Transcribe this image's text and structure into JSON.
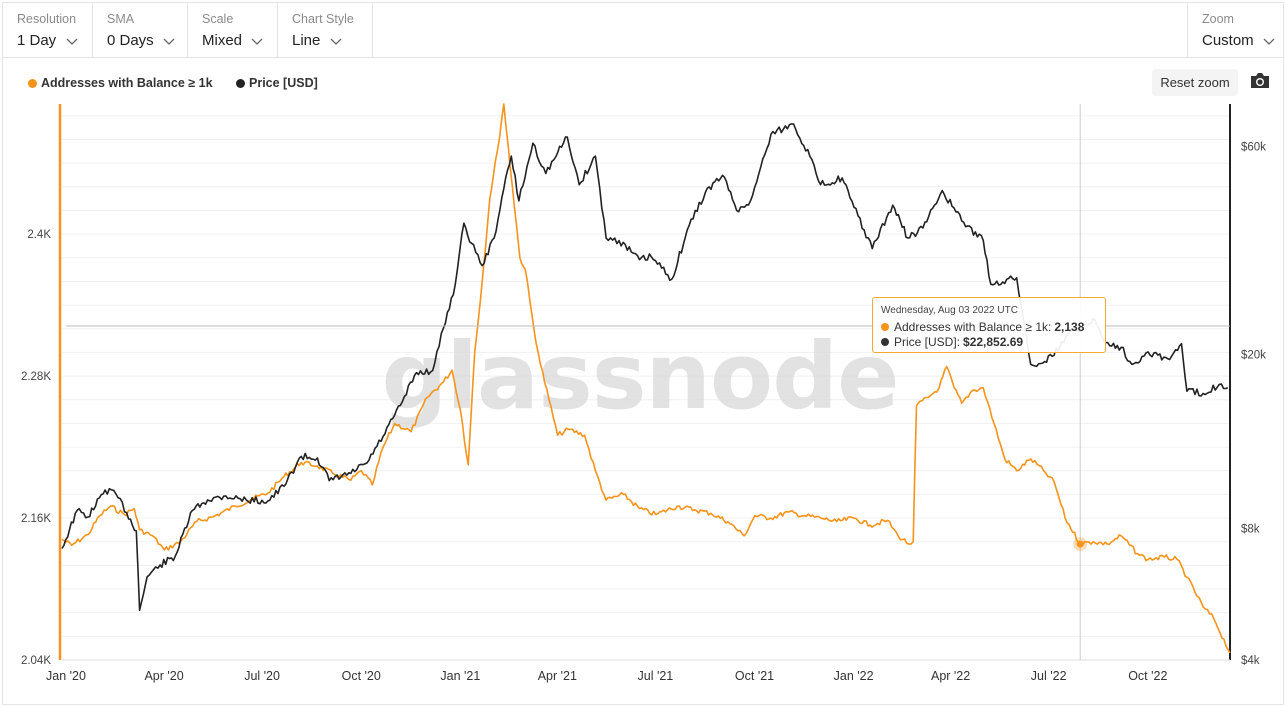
{
  "toolbar": {
    "resolution": {
      "label": "Resolution",
      "value": "1 Day"
    },
    "sma": {
      "label": "SMA",
      "value": "0 Days"
    },
    "scale": {
      "label": "Scale",
      "value": "Mixed"
    },
    "chart_style": {
      "label": "Chart Style",
      "value": "Line"
    },
    "zoom": {
      "label": "Zoom",
      "value": "Custom"
    }
  },
  "reset_zoom_label": "Reset zoom",
  "icons": {
    "camera": "camera-icon",
    "chevron": "chevron-down-icon"
  },
  "watermark": "glassnode",
  "colors": {
    "addresses": "#f7931a",
    "price": "#222222",
    "tooltip_border": "#f5a833"
  },
  "tooltip": {
    "date": "Wednesday, Aug 03 2022 UTC",
    "addresses_label": "Addresses with Balance ≥ 1k:",
    "addresses_value": "2,138",
    "price_label": "Price [USD]:",
    "price_value": "$22,852.69"
  },
  "chart_data": {
    "type": "line",
    "x_axis": {
      "type": "date",
      "range": [
        "2020-01-01",
        "2022-12-20"
      ],
      "ticks": [
        {
          "date": "2020-01-01",
          "label": "Jan '20"
        },
        {
          "date": "2020-04-01",
          "label": "Apr '20"
        },
        {
          "date": "2020-07-01",
          "label": "Jul '20"
        },
        {
          "date": "2020-10-01",
          "label": "Oct '20"
        },
        {
          "date": "2021-01-01",
          "label": "Jan '21"
        },
        {
          "date": "2021-04-01",
          "label": "Apr '21"
        },
        {
          "date": "2021-07-01",
          "label": "Jul '21"
        },
        {
          "date": "2021-10-01",
          "label": "Oct '21"
        },
        {
          "date": "2022-01-01",
          "label": "Jan '22"
        },
        {
          "date": "2022-04-01",
          "label": "Apr '22"
        },
        {
          "date": "2022-07-01",
          "label": "Jul '22"
        },
        {
          "date": "2022-10-01",
          "label": "Oct '22"
        }
      ]
    },
    "y_left": {
      "scale": "linear",
      "range": [
        2040,
        2510
      ],
      "ticks": [
        {
          "value": 2040,
          "label": "2.04K"
        },
        {
          "value": 2160,
          "label": "2.16K"
        },
        {
          "value": 2280,
          "label": "2.28K"
        },
        {
          "value": 2400,
          "label": "2.4K"
        }
      ]
    },
    "y_right": {
      "scale": "log",
      "range": [
        4000,
        75000
      ],
      "ticks": [
        {
          "value": 4000,
          "label": "$4k"
        },
        {
          "value": 8000,
          "label": "$8k"
        },
        {
          "value": 20000,
          "label": "$20k"
        },
        {
          "value": 60000,
          "label": "$60k"
        }
      ]
    },
    "series": [
      {
        "name": "Addresses with Balance ≥ 1k",
        "axis": "left",
        "color": "#f7931a",
        "points": [
          [
            "2020-01-01",
            2142
          ],
          [
            "2020-01-10",
            2137
          ],
          [
            "2020-01-25",
            2146
          ],
          [
            "2020-02-05",
            2162
          ],
          [
            "2020-02-15",
            2170
          ],
          [
            "2020-02-28",
            2163
          ],
          [
            "2020-03-08",
            2168
          ],
          [
            "2020-03-13",
            2150
          ],
          [
            "2020-03-25",
            2145
          ],
          [
            "2020-04-05",
            2133
          ],
          [
            "2020-04-20",
            2140
          ],
          [
            "2020-05-05",
            2157
          ],
          [
            "2020-05-20",
            2161
          ],
          [
            "2020-06-10",
            2170
          ],
          [
            "2020-06-25",
            2176
          ],
          [
            "2020-07-10",
            2181
          ],
          [
            "2020-07-25",
            2195
          ],
          [
            "2020-08-10",
            2207
          ],
          [
            "2020-08-25",
            2204
          ],
          [
            "2020-09-10",
            2197
          ],
          [
            "2020-09-25",
            2192
          ],
          [
            "2020-10-05",
            2200
          ],
          [
            "2020-10-15",
            2188
          ],
          [
            "2020-10-25",
            2220
          ],
          [
            "2020-11-05",
            2240
          ],
          [
            "2020-11-20",
            2233
          ],
          [
            "2020-12-05",
            2262
          ],
          [
            "2020-12-20",
            2275
          ],
          [
            "2020-12-28",
            2285
          ],
          [
            "2021-01-05",
            2250
          ],
          [
            "2021-01-12",
            2205
          ],
          [
            "2021-01-18",
            2300
          ],
          [
            "2021-01-25",
            2360
          ],
          [
            "2021-02-01",
            2430
          ],
          [
            "2021-02-08",
            2470
          ],
          [
            "2021-02-14",
            2510
          ],
          [
            "2021-02-22",
            2440
          ],
          [
            "2021-03-01",
            2380
          ],
          [
            "2021-03-06",
            2370
          ],
          [
            "2021-03-14",
            2320
          ],
          [
            "2021-03-20",
            2290
          ],
          [
            "2021-03-28",
            2260
          ],
          [
            "2021-04-05",
            2230
          ],
          [
            "2021-04-15",
            2235
          ],
          [
            "2021-04-30",
            2230
          ],
          [
            "2021-05-10",
            2200
          ],
          [
            "2021-05-20",
            2175
          ],
          [
            "2021-06-05",
            2180
          ],
          [
            "2021-06-20",
            2168
          ],
          [
            "2021-07-05",
            2163
          ],
          [
            "2021-07-25",
            2170
          ],
          [
            "2021-08-10",
            2167
          ],
          [
            "2021-08-25",
            2164
          ],
          [
            "2021-09-10",
            2157
          ],
          [
            "2021-09-25",
            2145
          ],
          [
            "2021-10-05",
            2162
          ],
          [
            "2021-10-20",
            2160
          ],
          [
            "2021-11-05",
            2165
          ],
          [
            "2021-11-20",
            2162
          ],
          [
            "2021-12-05",
            2160
          ],
          [
            "2021-12-20",
            2157
          ],
          [
            "2022-01-05",
            2160
          ],
          [
            "2022-01-20",
            2154
          ],
          [
            "2022-02-05",
            2158
          ],
          [
            "2022-02-15",
            2145
          ],
          [
            "2022-02-25",
            2138
          ],
          [
            "2022-03-01",
            2140
          ],
          [
            "2022-03-04",
            2255
          ],
          [
            "2022-03-15",
            2262
          ],
          [
            "2022-03-25",
            2270
          ],
          [
            "2022-04-01",
            2288
          ],
          [
            "2022-04-08",
            2270
          ],
          [
            "2022-04-15",
            2257
          ],
          [
            "2022-04-25",
            2268
          ],
          [
            "2022-05-05",
            2270
          ],
          [
            "2022-05-15",
            2240
          ],
          [
            "2022-05-25",
            2210
          ],
          [
            "2022-06-05",
            2200
          ],
          [
            "2022-06-18",
            2210
          ],
          [
            "2022-06-30",
            2200
          ],
          [
            "2022-07-10",
            2190
          ],
          [
            "2022-07-20",
            2160
          ],
          [
            "2022-08-03",
            2138
          ],
          [
            "2022-08-15",
            2140
          ],
          [
            "2022-08-28",
            2138
          ],
          [
            "2022-09-10",
            2145
          ],
          [
            "2022-09-25",
            2130
          ],
          [
            "2022-10-05",
            2125
          ],
          [
            "2022-10-20",
            2127
          ],
          [
            "2022-11-01",
            2125
          ],
          [
            "2022-11-10",
            2110
          ],
          [
            "2022-11-25",
            2085
          ],
          [
            "2022-12-05",
            2075
          ],
          [
            "2022-12-20",
            2046
          ]
        ]
      },
      {
        "name": "Price [USD]",
        "axis": "right",
        "color": "#222222",
        "points": [
          [
            "2020-01-01",
            7200
          ],
          [
            "2020-01-15",
            8800
          ],
          [
            "2020-01-25",
            8500
          ],
          [
            "2020-02-10",
            9800
          ],
          [
            "2020-02-20",
            9600
          ],
          [
            "2020-03-01",
            8700
          ],
          [
            "2020-03-10",
            7900
          ],
          [
            "2020-03-13",
            5200
          ],
          [
            "2020-03-20",
            6200
          ],
          [
            "2020-04-01",
            6600
          ],
          [
            "2020-04-15",
            6900
          ],
          [
            "2020-05-01",
            8800
          ],
          [
            "2020-05-15",
            9300
          ],
          [
            "2020-06-01",
            9500
          ],
          [
            "2020-06-20",
            9300
          ],
          [
            "2020-07-10",
            9250
          ],
          [
            "2020-07-25",
            10000
          ],
          [
            "2020-08-10",
            11700
          ],
          [
            "2020-08-25",
            11600
          ],
          [
            "2020-09-05",
            10300
          ],
          [
            "2020-09-25",
            10700
          ],
          [
            "2020-10-10",
            11300
          ],
          [
            "2020-10-25",
            13000
          ],
          [
            "2020-11-10",
            15300
          ],
          [
            "2020-11-25",
            18200
          ],
          [
            "2020-12-10",
            18400
          ],
          [
            "2020-12-20",
            23000
          ],
          [
            "2020-12-31",
            29000
          ],
          [
            "2021-01-08",
            40000
          ],
          [
            "2021-01-15",
            36000
          ],
          [
            "2021-01-25",
            32000
          ],
          [
            "2021-02-05",
            37000
          ],
          [
            "2021-02-14",
            48000
          ],
          [
            "2021-02-21",
            57000
          ],
          [
            "2021-02-28",
            45000
          ],
          [
            "2021-03-13",
            61000
          ],
          [
            "2021-03-25",
            52000
          ],
          [
            "2021-04-05",
            58000
          ],
          [
            "2021-04-14",
            63000
          ],
          [
            "2021-04-25",
            49000
          ],
          [
            "2021-05-10",
            57000
          ],
          [
            "2021-05-20",
            37000
          ],
          [
            "2021-06-01",
            36500
          ],
          [
            "2021-06-20",
            33000
          ],
          [
            "2021-07-01",
            33500
          ],
          [
            "2021-07-20",
            29800
          ],
          [
            "2021-08-05",
            39500
          ],
          [
            "2021-08-20",
            47000
          ],
          [
            "2021-09-05",
            51500
          ],
          [
            "2021-09-20",
            42500
          ],
          [
            "2021-10-01",
            45000
          ],
          [
            "2021-10-20",
            64000
          ],
          [
            "2021-11-10",
            67500
          ],
          [
            "2021-11-25",
            57000
          ],
          [
            "2021-12-05",
            49000
          ],
          [
            "2021-12-25",
            50800
          ],
          [
            "2022-01-05",
            43500
          ],
          [
            "2022-01-22",
            35000
          ],
          [
            "2022-02-10",
            44000
          ],
          [
            "2022-02-24",
            37000
          ],
          [
            "2022-03-10",
            39000
          ],
          [
            "2022-03-28",
            47500
          ],
          [
            "2022-04-15",
            40500
          ],
          [
            "2022-05-05",
            36500
          ],
          [
            "2022-05-12",
            29000
          ],
          [
            "2022-06-05",
            30000
          ],
          [
            "2022-06-18",
            19000
          ],
          [
            "2022-07-01",
            19300
          ],
          [
            "2022-07-15",
            20800
          ],
          [
            "2022-07-30",
            23500
          ],
          [
            "2022-08-03",
            22853
          ],
          [
            "2022-08-15",
            24200
          ],
          [
            "2022-08-25",
            21500
          ],
          [
            "2022-09-10",
            20800
          ],
          [
            "2022-09-20",
            19000
          ],
          [
            "2022-10-05",
            20300
          ],
          [
            "2022-10-25",
            19500
          ],
          [
            "2022-11-05",
            21200
          ],
          [
            "2022-11-10",
            16500
          ],
          [
            "2022-11-25",
            16300
          ],
          [
            "2022-12-10",
            17100
          ],
          [
            "2022-12-18",
            16800
          ]
        ]
      }
    ],
    "crosshair": {
      "date": "2022-08-03",
      "left_value": 2138,
      "price": 22852.69
    },
    "legend": {
      "position": "top-left",
      "entries": [
        "Addresses with Balance ≥ 1k",
        "Price [USD]"
      ]
    },
    "grid": true
  }
}
